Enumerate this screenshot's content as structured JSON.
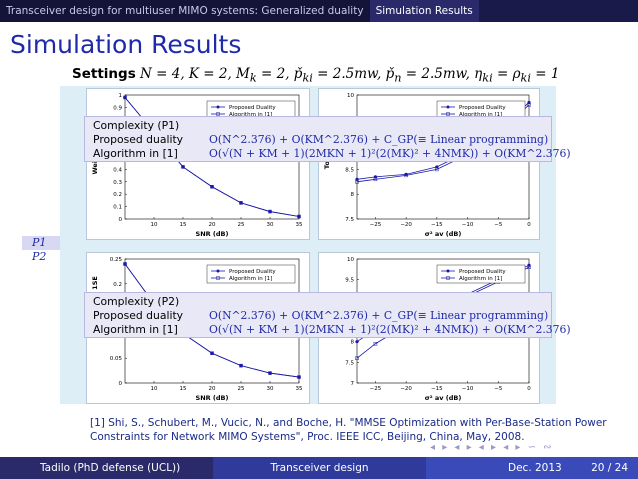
{
  "topbar": {
    "left_title": "Transceiver design for multiuser MIMO systems: Generalized duality",
    "right_title": "Simulation Results"
  },
  "frame": {
    "title": "Simulation Results",
    "settings_label": "Settings",
    "settings_math": "N = 4, K = 2, M",
    "settings_rest": "= 2, p̌",
    "settings_rest2": "= 2.5mw, p̌",
    "settings_rest3": "= 2.5mw, η",
    "settings_rest4": "= ρ",
    "settings_rest5": "= 1",
    "sub_k": "k",
    "sub_ki": "ki",
    "sub_n": "n"
  },
  "side_labels": {
    "p1": "P1",
    "p2": "P2"
  },
  "complexity_boxes": [
    {
      "header": "Complexity (P1)",
      "row1_label": "Proposed duality",
      "row1_formula": "O(N^2.376) + O(KM^2.376) + C_GP(≡ Linear programming)",
      "row2_label": "Algorithm in [1]",
      "row2_formula": "O(√(N + KM + 1)(2MKN + 1)²(2(MK)² + 4NMK)) + O(KM^2.376)"
    },
    {
      "header": "Complexity (P2)",
      "row1_label": "Proposed duality",
      "row1_formula": "O(N^2.376) + O(KM^2.376) + C_GP(≡ Linear programming)",
      "row2_label": "Algorithm in [1]",
      "row2_formula": "O(√(N + KM + 1)(2MKN + 1)²(2(MK)² + 4NMK)) + O(KM^2.376)"
    }
  ],
  "reference": "[1] Shi, S., Schubert, M., Vucic, N., and Boche, H. \"MMSE Optimization with Per-Base-Station Power Constraints for Network MIMO Systems\", Proc. IEEE ICC, Beijing, China, May, 2008.",
  "footer": {
    "author": "Tadilo  (PhD defense (UCL))",
    "topic": "Transceiver design",
    "date": "Dec. 2013",
    "page": "20 / 24"
  },
  "nav_symbols": "◂ ▸ ◂ ▸ ◂ ▸ ◂ ▸ ∽ ∾",
  "chart_data": [
    {
      "type": "line",
      "xlabel": "SNR (dB)",
      "ylabel": "Weighted",
      "x_ticks": [
        "10",
        "15",
        "20",
        "25",
        "30",
        "35"
      ],
      "y_ticks": [
        "0",
        "0.1",
        "0.2",
        "0.3",
        "0.4",
        "0.9",
        "1"
      ],
      "xlim": [
        5,
        35
      ],
      "ylim": [
        0,
        1
      ],
      "series": [
        {
          "name": "Proposed Duality",
          "x": [
            5,
            10,
            15,
            20,
            25,
            30,
            35
          ],
          "values": [
            0.98,
            0.7,
            0.42,
            0.26,
            0.13,
            0.06,
            0.02
          ]
        },
        {
          "name": "Algorithm in [1]",
          "x": [
            5,
            10,
            15,
            20,
            25,
            30,
            35
          ],
          "values": [
            0.98,
            0.7,
            0.42,
            0.26,
            0.13,
            0.06,
            0.02
          ]
        }
      ]
    },
    {
      "type": "line",
      "xlabel": "(dB)",
      "xlabel_sym": "σ² av",
      "ylabel": "Total E",
      "x_ticks": [
        "−25",
        "−20",
        "−15",
        "−10",
        "−5",
        "0"
      ],
      "y_ticks": [
        "7.5",
        "8",
        "8.5",
        "10"
      ],
      "xlim": [
        -28,
        0
      ],
      "ylim": [
        7.5,
        10
      ],
      "series": [
        {
          "name": "Proposed Duality",
          "x": [
            -28,
            -25,
            -20,
            -15,
            -10,
            -5,
            0
          ],
          "values": [
            8.3,
            8.35,
            8.4,
            8.55,
            8.85,
            9.3,
            9.85
          ]
        },
        {
          "name": "Algorithm in [1]",
          "x": [
            -28,
            -25,
            -20,
            -15,
            -10,
            -5,
            0
          ],
          "values": [
            8.25,
            8.3,
            8.38,
            8.5,
            8.8,
            9.25,
            9.8
          ]
        }
      ]
    },
    {
      "type": "line",
      "xlabel": "SNR (dB)",
      "ylabel": "Maximu",
      "ylabel2": "1SE",
      "x_ticks": [
        "10",
        "15",
        "20",
        "25",
        "30",
        "35"
      ],
      "y_ticks": [
        "0",
        "0.05",
        "0.2",
        "0.25"
      ],
      "xlim": [
        5,
        35
      ],
      "ylim": [
        0,
        0.25
      ],
      "series": [
        {
          "name": "Proposed Duality",
          "x": [
            5,
            10,
            15,
            20,
            25,
            30,
            35
          ],
          "values": [
            0.24,
            0.16,
            0.1,
            0.06,
            0.035,
            0.02,
            0.012
          ]
        },
        {
          "name": "Algorithm in [1]",
          "x": [
            5,
            10,
            15,
            20,
            25,
            30,
            35
          ],
          "values": [
            0.24,
            0.16,
            0.1,
            0.06,
            0.035,
            0.02,
            0.012
          ]
        }
      ]
    },
    {
      "type": "line",
      "xlabel": "(dB)",
      "xlabel_sym": "σ² av",
      "ylabel": "Tot",
      "x_ticks": [
        "−25",
        "−20",
        "−15",
        "−10",
        "−5",
        "0"
      ],
      "y_ticks": [
        "7",
        "7.5",
        "8",
        "9.5",
        "10"
      ],
      "xlim": [
        -28,
        0
      ],
      "ylim": [
        7,
        10
      ],
      "series": [
        {
          "name": "Proposed Duality",
          "x": [
            -28,
            -25,
            -20,
            -15,
            -10,
            -5,
            0
          ],
          "values": [
            8.0,
            8.3,
            8.6,
            8.9,
            9.15,
            9.5,
            9.85
          ]
        },
        {
          "name": "Algorithm in [1]",
          "x": [
            -28,
            -25,
            -20,
            -15,
            -10,
            -5,
            0
          ],
          "values": [
            7.6,
            7.95,
            8.4,
            8.8,
            9.1,
            9.45,
            9.8
          ]
        }
      ]
    }
  ]
}
